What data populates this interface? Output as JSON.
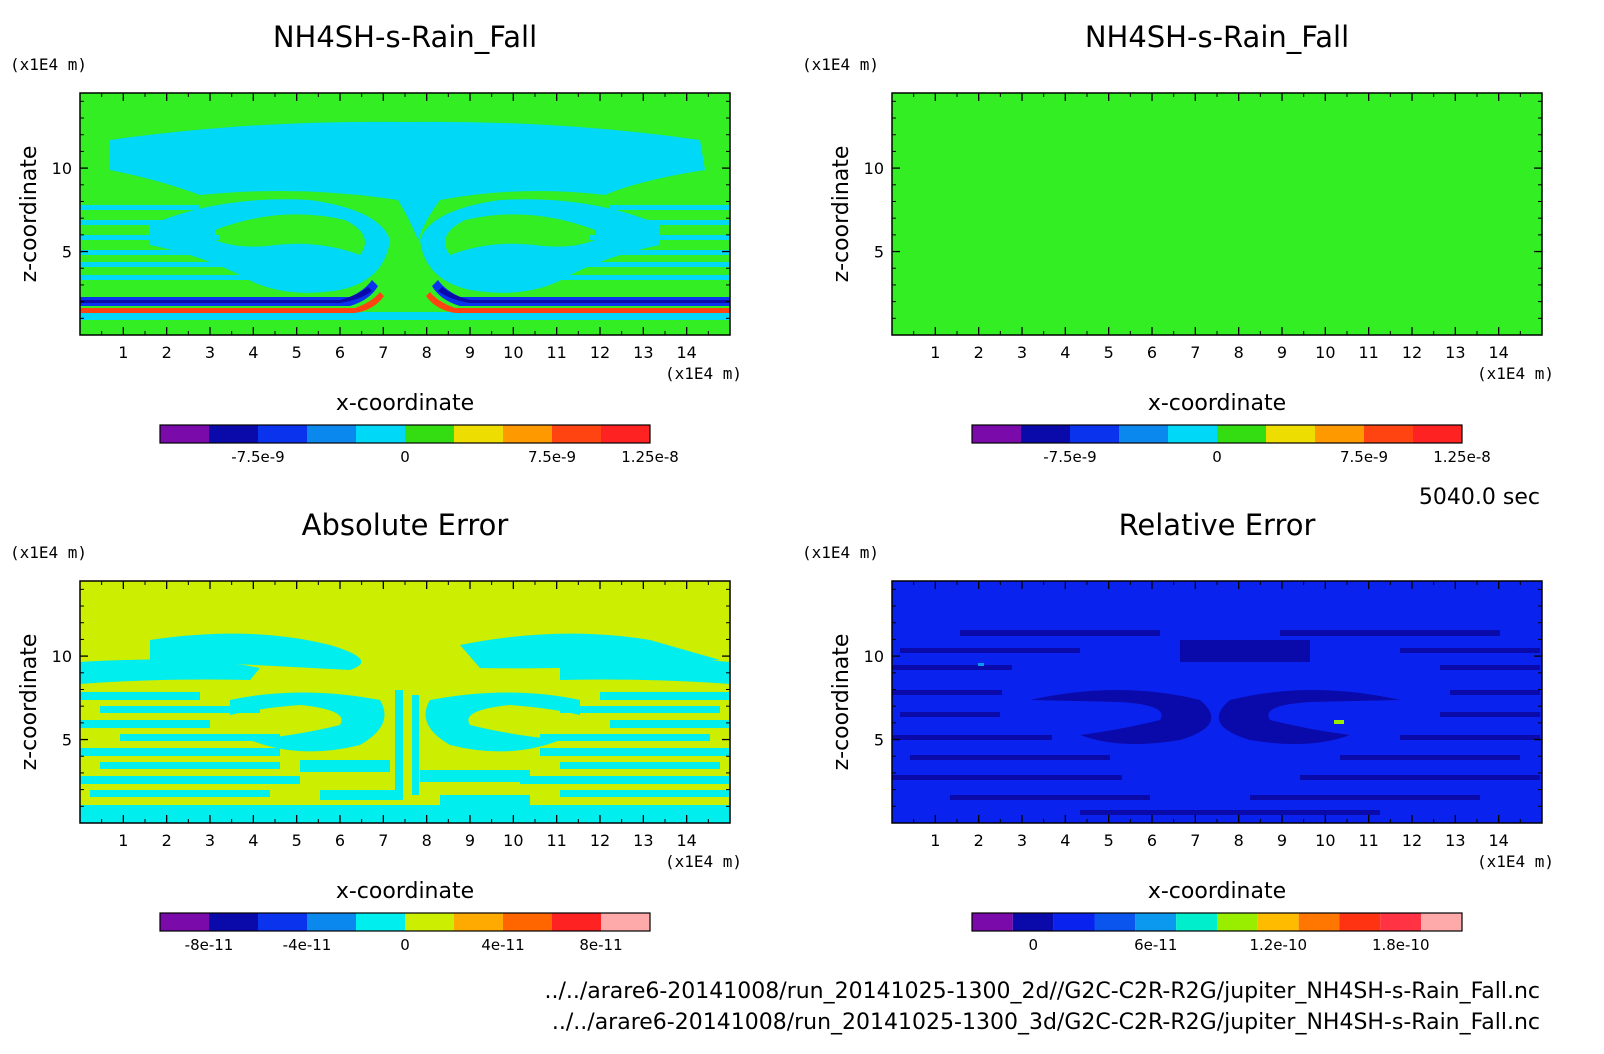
{
  "time_label": "5040.0 sec",
  "footer": {
    "file_2d": "../../arare6-20141008/run_20141025-1300_2d//G2C-C2R-R2G/jupiter_NH4SH-s-Rain_Fall.nc",
    "file_3d": "../../arare6-20141008/run_20141025-1300_3d/G2C-C2R-R2G/jupiter_NH4SH-s-Rain_Fall.nc"
  },
  "chart_data": [
    {
      "type": "heatmap",
      "title": "NH4SH-s-Rain_Fall",
      "xlabel": "x-coordinate",
      "ylabel": "z-coordinate",
      "x_unit": "(x1E4 m)",
      "y_unit": "(x1E4 m)",
      "xlim": [
        0,
        15
      ],
      "ylim": [
        0,
        14.5
      ],
      "xticks": [
        1,
        2,
        3,
        4,
        5,
        6,
        7,
        8,
        9,
        10,
        11,
        12,
        13,
        14
      ],
      "yticks": [
        5,
        10
      ],
      "background_color": "#33ee22",
      "colorbar": {
        "colors": [
          "#7a0aaa",
          "#0a0aaa",
          "#0a33ee",
          "#0a88ee",
          "#00d8f8",
          "#33dd11",
          "#eedd00",
          "#ff9900",
          "#ff4411",
          "#ff2222"
        ],
        "labels": [
          "-7.5e-9",
          "0",
          "7.5e-9",
          "1.25e-8"
        ],
        "label_positions": [
          2,
          5,
          8,
          10
        ]
      }
    },
    {
      "type": "heatmap",
      "title": "NH4SH-s-Rain_Fall",
      "xlabel": "x-coordinate",
      "ylabel": "z-coordinate",
      "x_unit": "(x1E4 m)",
      "y_unit": "(x1E4 m)",
      "xlim": [
        0,
        15
      ],
      "ylim": [
        0,
        14.5
      ],
      "xticks": [
        1,
        2,
        3,
        4,
        5,
        6,
        7,
        8,
        9,
        10,
        11,
        12,
        13,
        14
      ],
      "yticks": [
        5,
        10
      ],
      "background_color": "#33ee22",
      "colorbar": {
        "colors": [
          "#7a0aaa",
          "#0a0aaa",
          "#0a33ee",
          "#0a88ee",
          "#00d8f8",
          "#33dd11",
          "#eedd00",
          "#ff9900",
          "#ff4411",
          "#ff2222"
        ],
        "labels": [
          "-7.5e-9",
          "0",
          "7.5e-9",
          "1.25e-8"
        ],
        "label_positions": [
          2,
          5,
          8,
          10
        ]
      }
    },
    {
      "type": "heatmap",
      "title": "Absolute Error",
      "xlabel": "x-coordinate",
      "ylabel": "z-coordinate",
      "x_unit": "(x1E4 m)",
      "y_unit": "(x1E4 m)",
      "xlim": [
        0,
        15
      ],
      "ylim": [
        0,
        14.5
      ],
      "xticks": [
        1,
        2,
        3,
        4,
        5,
        6,
        7,
        8,
        9,
        10,
        11,
        12,
        13,
        14
      ],
      "yticks": [
        5,
        10
      ],
      "background_color": "#ccee00",
      "colorbar": {
        "colors": [
          "#7a0aaa",
          "#0a0aaa",
          "#0a33ee",
          "#0a88ee",
          "#00eeee",
          "#ccee00",
          "#ffaa00",
          "#ff6600",
          "#ff2222",
          "#ffaaaa"
        ],
        "labels": [
          "-8e-11",
          "-4e-11",
          "0",
          "4e-11",
          "8e-11"
        ],
        "label_positions": [
          1,
          3,
          5,
          7,
          9
        ]
      }
    },
    {
      "type": "heatmap",
      "title": "Relative Error",
      "xlabel": "x-coordinate",
      "ylabel": "z-coordinate",
      "x_unit": "(x1E4 m)",
      "y_unit": "(x1E4 m)",
      "xlim": [
        0,
        15
      ],
      "ylim": [
        0,
        14.5
      ],
      "xticks": [
        1,
        2,
        3,
        4,
        5,
        6,
        7,
        8,
        9,
        10,
        11,
        12,
        13,
        14
      ],
      "yticks": [
        5,
        10
      ],
      "background_color": "#0a22ee",
      "colorbar": {
        "colors": [
          "#7a0aaa",
          "#0a0aaa",
          "#0a22ee",
          "#0a55ee",
          "#0a99ee",
          "#00eecc",
          "#99ee00",
          "#ffbb00",
          "#ff7700",
          "#ff3311",
          "#ff3344",
          "#ffaaaa"
        ],
        "labels": [
          "0",
          "6e-11",
          "1.2e-10",
          "1.8e-10"
        ],
        "label_positions": [
          1.5,
          4.5,
          7.5,
          10.5
        ]
      }
    }
  ]
}
